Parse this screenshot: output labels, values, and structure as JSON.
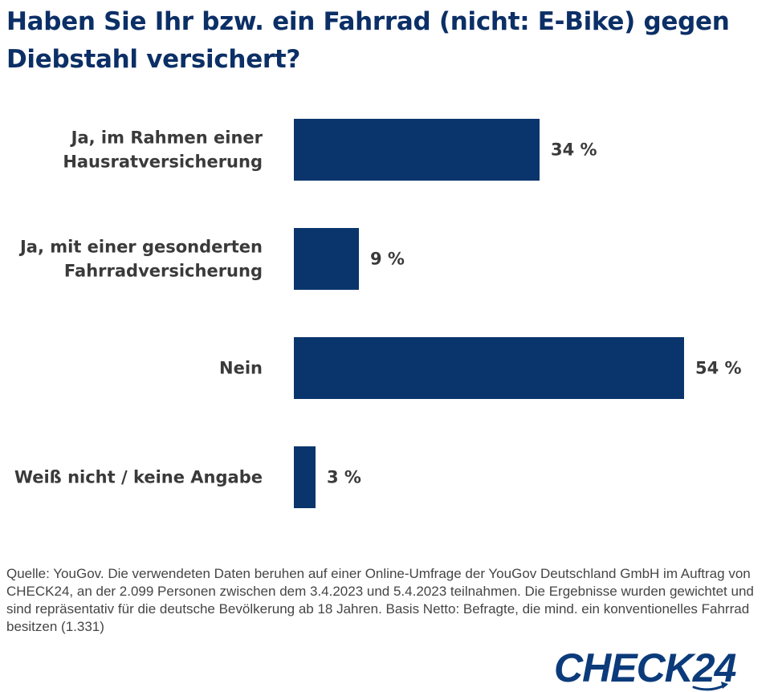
{
  "title": "Haben Sie Ihr bzw. ein Fahrrad (nicht: E-Bike) gegen Diebstahl versichert?",
  "colors": {
    "bar": "#0a356c",
    "title": "#0b2f66",
    "label": "#3a3a3a",
    "source": "#454545",
    "logo": "#0b3b7a"
  },
  "chart_data": {
    "type": "bar",
    "orientation": "horizontal",
    "unit": "%",
    "categories": [
      [
        "Ja, im Rahmen einer",
        "Hausratversicherung"
      ],
      [
        "Ja, mit einer gesonderten",
        "Fahrradversicherung"
      ],
      [
        "Nein"
      ],
      [
        "Weiß nicht / keine Angabe"
      ]
    ],
    "values": [
      34,
      9,
      54,
      3
    ],
    "value_labels": [
      "34 %",
      "9 %",
      "54 %",
      "3 %"
    ],
    "grid": false,
    "legend": "none"
  },
  "source": "Quelle: YouGov. Die verwendeten Daten beruhen auf einer Online-Umfrage der YouGov Deutschland GmbH im Auftrag von CHECK24, an der 2.099 Personen zwischen dem 3.4.2023 und 5.4.2023 teilnahmen. Die Ergebnisse wurden gewichtet und sind repräsentativ für die deutsche Bevölkerung ab 18 Jahren. Basis Netto: Befragte, die mind. ein konventionelles Fahrrad besitzen (1.331)",
  "logo": {
    "text": "CHECK24",
    "icon": "check24-logo"
  }
}
